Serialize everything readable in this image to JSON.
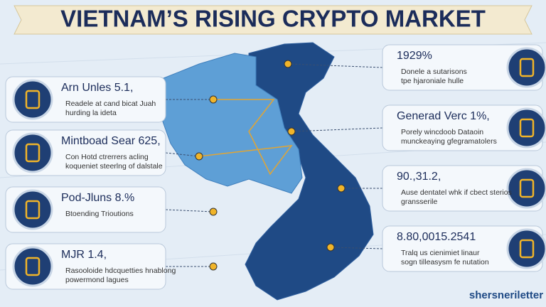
{
  "header": {
    "title": "VIETNAM’S RISING CRYPTO MARKET"
  },
  "left_callouts": [
    {
      "headline": "Arn Unles 5.1,",
      "lines": [
        "Readele at cand bicat Juah",
        "hurding la ideta"
      ]
    },
    {
      "headline": "Mintboad Sear 625,",
      "lines": [
        "Con Hotd ctrerrers acling",
        "koqueniet steerlng of dalstale"
      ]
    },
    {
      "headline": "Pod-Jluns 8.%",
      "lines": [
        "Btoending Trioutions"
      ]
    },
    {
      "headline": "MJR 1.4,",
      "lines": [
        "Rasooloide hdcquetties hnablong",
        "powermond lagues"
      ]
    }
  ],
  "right_callouts": [
    {
      "headline": "1929%",
      "lines": [
        "Donele a sutarisons",
        "tpe hjaroniale hulle"
      ]
    },
    {
      "headline": "Generad Verc 1%,",
      "lines": [
        "Porely wincdoob Dataoin",
        "munckeaying gfegramatolers"
      ]
    },
    {
      "headline": "90.,31.2,",
      "lines": [
        "Ause dentatel whk if cbect sterios",
        "gransserile"
      ]
    },
    {
      "headline": "8.80,0015.2541",
      "lines": [
        "Tralq us cienimiet linaur",
        "sogn tilleasysm fe nutation"
      ]
    }
  ],
  "brand": "shersneriletter"
}
